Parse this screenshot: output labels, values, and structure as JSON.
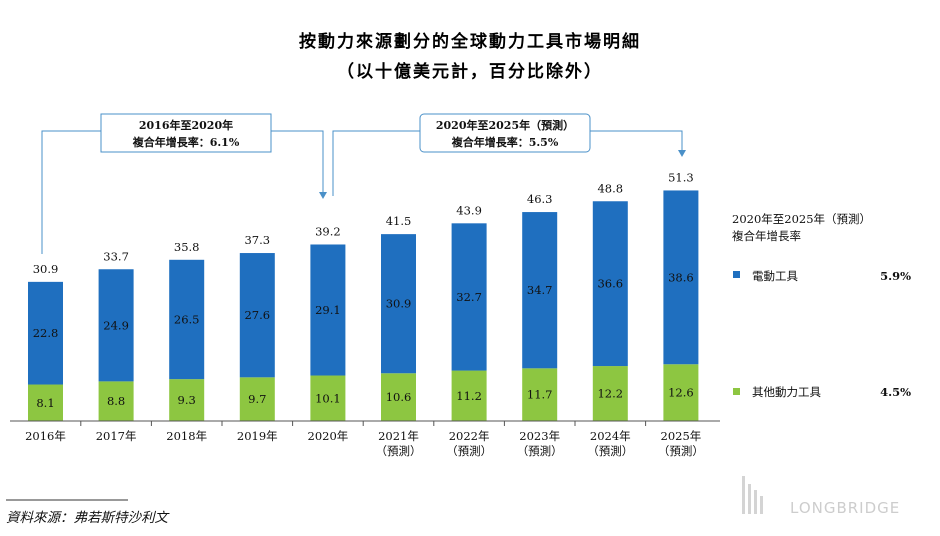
{
  "chart_data": {
    "type": "bar",
    "stacked": true,
    "title": "按動力來源劃分的全球動力工具市場明細",
    "subtitle": "（以十億美元計，百分比除外）",
    "categories": [
      [
        "2016年"
      ],
      [
        "2017年"
      ],
      [
        "2018年"
      ],
      [
        "2019年"
      ],
      [
        "2020年"
      ],
      [
        "2021年",
        "（預測）"
      ],
      [
        "2022年",
        "（預測）"
      ],
      [
        "2023年",
        "（預測）"
      ],
      [
        "2024年",
        "（預測）"
      ],
      [
        "2025年",
        "（預測）"
      ]
    ],
    "totals": [
      "30.9",
      "33.7",
      "35.8",
      "37.3",
      "39.2",
      "41.5",
      "43.9",
      "46.3",
      "48.8",
      "51.3"
    ],
    "series": [
      {
        "name": "其他動力工具",
        "color": "#8dc641",
        "values": [
          8.1,
          8.8,
          9.3,
          9.7,
          10.1,
          10.6,
          11.2,
          11.7,
          12.2,
          12.6
        ],
        "labels": [
          "8.1",
          "8.8",
          "9.3",
          "9.7",
          "10.1",
          "10.6",
          "11.2",
          "11.7",
          "12.2",
          "12.6"
        ],
        "cagr": "4.5%"
      },
      {
        "name": "電動工具",
        "color": "#1f6fbf",
        "values": [
          22.8,
          24.9,
          26.5,
          27.6,
          29.1,
          30.9,
          32.7,
          34.7,
          36.6,
          38.6
        ],
        "labels": [
          "22.8",
          "24.9",
          "26.5",
          "27.6",
          "29.1",
          "30.9",
          "32.7",
          "34.7",
          "36.6",
          "38.6"
        ],
        "cagr": "5.9%"
      }
    ],
    "ylim": [
      0,
      51.3
    ],
    "grid": false,
    "cagr_callouts": [
      {
        "period": "2016年至2020年",
        "text": "複合年增長率：6.1%"
      },
      {
        "period": "2020年至2025年（預測）",
        "text": "複合年增長率：5.5%"
      }
    ],
    "legend": {
      "position": "right",
      "header": [
        "2020年至2025年（預測）",
        "複合年增長率"
      ]
    }
  },
  "source": "資料來源：弗若斯特沙利文",
  "watermark": "LONGBRIDGE"
}
